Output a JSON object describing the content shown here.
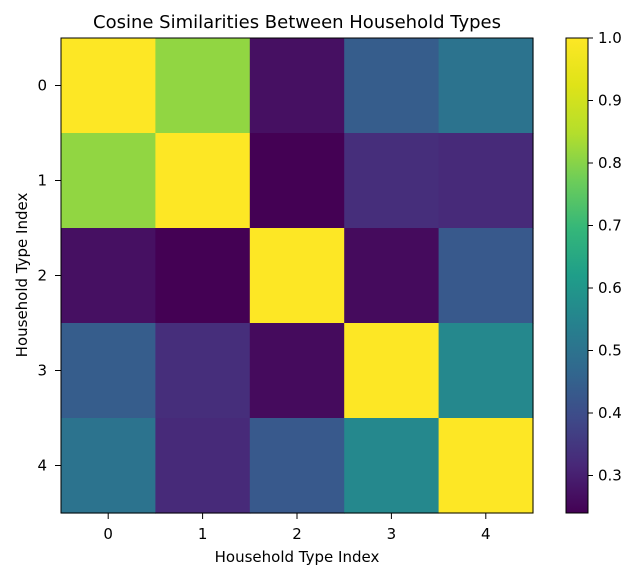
{
  "chart_data": {
    "type": "heatmap",
    "title": "Cosine Similarities Between Household Types",
    "xlabel": "Household Type Index",
    "ylabel": "Household Type Index",
    "x_categories": [
      "0",
      "1",
      "2",
      "3",
      "4"
    ],
    "y_categories": [
      "0",
      "1",
      "2",
      "3",
      "4"
    ],
    "values": [
      [
        1.0,
        0.81,
        0.27,
        0.44,
        0.5
      ],
      [
        0.81,
        1.0,
        0.24,
        0.33,
        0.32
      ],
      [
        0.27,
        0.24,
        1.0,
        0.26,
        0.43
      ],
      [
        0.44,
        0.33,
        0.26,
        1.0,
        0.56
      ],
      [
        0.5,
        0.32,
        0.43,
        0.56,
        1.0
      ]
    ],
    "colormap": "viridis",
    "vmin": 0.24,
    "vmax": 1.0,
    "colorbar_ticks": [
      0.3,
      0.4,
      0.5,
      0.6,
      0.7,
      0.8,
      0.9,
      1.0
    ],
    "colorbar_tick_labels": [
      "0.3",
      "0.4",
      "0.5",
      "0.6",
      "0.7",
      "0.8",
      "0.9",
      "1.0"
    ],
    "grid": false
  }
}
